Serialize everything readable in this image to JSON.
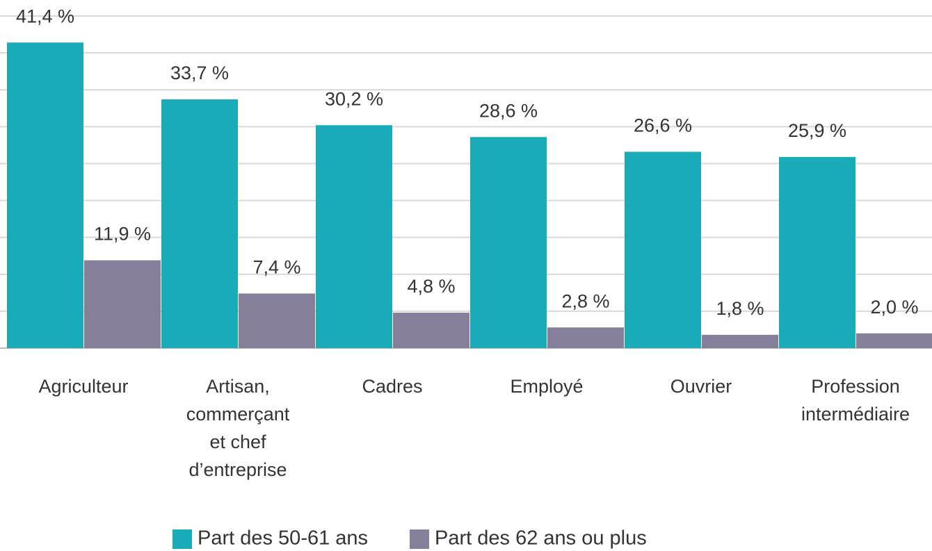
{
  "chart_data": {
    "type": "bar",
    "categories": [
      "Agriculteur",
      "Artisan, commerçant et chef d’entreprise",
      "Cadres",
      "Employé",
      "Ouvrier",
      "Profession intermédiaire"
    ],
    "series": [
      {
        "name": "Part des 50-61 ans",
        "color": "#1aabb8",
        "values": [
          41.4,
          33.7,
          30.2,
          28.6,
          26.6,
          25.9
        ],
        "value_labels": [
          "41,4 %",
          "33,7 %",
          "30,2 %",
          "28,6 %",
          "26,6 %",
          "25,9 %"
        ]
      },
      {
        "name": "Part des 62 ans ou plus",
        "color": "#857f9b",
        "values": [
          11.9,
          7.4,
          4.8,
          2.8,
          1.8,
          2.0
        ],
        "value_labels": [
          "11,9 %",
          "7,4 %",
          "4,8 %",
          "2,8 %",
          "1,8 %",
          "2,0 %"
        ]
      }
    ],
    "ylim": [
      0,
      45
    ],
    "yticks": [
      0,
      5,
      10,
      15,
      20,
      25,
      30,
      35,
      40,
      45
    ],
    "grid": true,
    "legend": "bottom"
  }
}
